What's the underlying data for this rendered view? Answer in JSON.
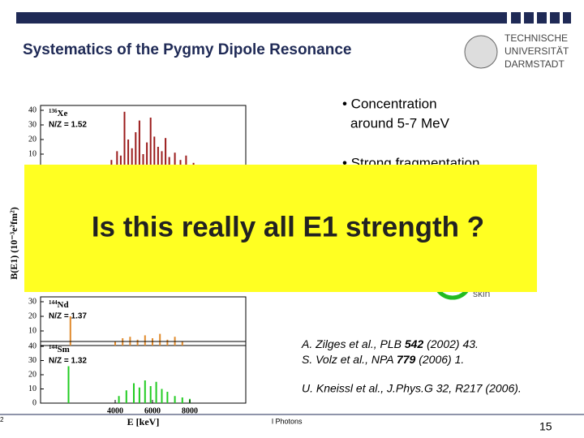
{
  "header": {
    "title": "Systematics of the Pygmy Dipole Resonance",
    "logo": [
      "TECHNISCHE",
      "UNIVERSITÄT",
      "DARMSTADT"
    ]
  },
  "y_axis_title": "B(E1) (10⁻³e²fm²)",
  "chart_data": [
    {
      "type": "bar",
      "mass": "136",
      "element": "Xe",
      "ratio": "N/Z = 1.52",
      "color": "#9b1c1c",
      "x": [
        3800,
        4100,
        4300,
        4500,
        4700,
        4900,
        5100,
        5300,
        5500,
        5700,
        5900,
        6100,
        6300,
        6500,
        6700,
        6900,
        7200,
        7500,
        7800,
        8200
      ],
      "values": [
        6,
        12,
        9,
        39,
        20,
        14,
        25,
        33,
        10,
        18,
        35,
        22,
        15,
        12,
        21,
        8,
        11,
        6,
        9,
        4
      ],
      "xlim": [
        0,
        11000
      ],
      "ylim": [
        0,
        40
      ],
      "yticks": [
        10,
        20,
        30,
        40
      ]
    },
    {
      "type": "bar",
      "mass": "144",
      "element": "Nd",
      "ratio": "N/Z = 1.37",
      "color": "#e08a2c",
      "x": [
        1600,
        4000,
        4400,
        4800,
        5200,
        5600,
        6000,
        6400,
        6800,
        7200,
        7600
      ],
      "values": [
        20,
        3,
        5,
        6,
        4,
        7,
        5,
        8,
        4,
        6,
        3
      ],
      "xlim": [
        0,
        11000
      ],
      "ylim": [
        0,
        30
      ],
      "yticks": [
        10,
        20,
        30
      ]
    },
    {
      "type": "bar",
      "mass": "144",
      "element": "Sm",
      "ratio": "N/Z = 1.32",
      "color": "#22cc22",
      "x": [
        1500,
        4200,
        4600,
        5000,
        5300,
        5600,
        5900,
        6200,
        6500,
        6800,
        7200,
        7600,
        8000
      ],
      "values": [
        26,
        5,
        9,
        14,
        11,
        16,
        12,
        15,
        10,
        8,
        5,
        4,
        3
      ],
      "xlim": [
        0,
        11000
      ],
      "ylim": [
        0,
        40
      ],
      "yticks": [
        0,
        10,
        20,
        30,
        40
      ],
      "xticks": [
        4000,
        6000,
        8000
      ],
      "xlabel": "E [keV]"
    }
  ],
  "bullets": [
    [
      "• Concentration",
      "around 5-7 MeV"
    ],
    [
      "• Strong fragmentation"
    ]
  ],
  "covered_label": "skin",
  "overlay": "Is this really all E1 strength ?",
  "references": [
    [
      "A. Zilges et al., PLB ",
      "542",
      " (2002) 43."
    ],
    [
      "S. Volz et al., NPA ",
      "779",
      " (2006) 1."
    ],
    [
      "U. Kneissl et al., J.Phys.G 32, R217 (2006)."
    ]
  ],
  "footer": {
    "left": "2",
    "center": "l Photons",
    "page": "15"
  }
}
